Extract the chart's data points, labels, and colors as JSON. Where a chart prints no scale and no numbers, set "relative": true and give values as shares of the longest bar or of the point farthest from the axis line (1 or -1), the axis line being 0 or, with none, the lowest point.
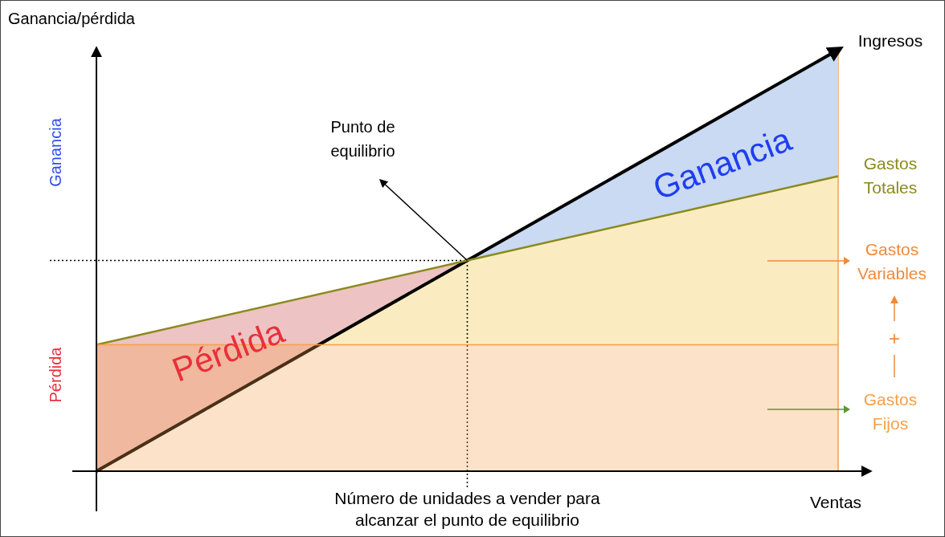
{
  "chart_data": {
    "type": "line",
    "ylabel": "Ganancia/pérdida",
    "xlabel": "Ventas",
    "relative": true,
    "categories": [
      null,
      null,
      null
    ],
    "series": [
      {
        "name": "Ingresos",
        "color": "#000000",
        "values": [
          0,
          0.5,
          1
        ]
      },
      {
        "name": "Gastos Totales",
        "color": "#8a8a1e",
        "values": [
          0.3,
          0.5,
          0.7
        ]
      },
      {
        "name": "Gastos Fijos",
        "type": "area",
        "color": "#f5a04a",
        "values": [
          0.3,
          0.3,
          0.3
        ]
      }
    ],
    "ref_lines": [
      {
        "axis": "y",
        "value": 0.5,
        "line_style": "dotted"
      }
    ],
    "annotations": [
      "Punto de equilibrio",
      "Ganancia",
      "Pérdida",
      "Ganancia",
      "Pérdida",
      "Número de unidades a vender para alcanzar el punto de equilibrio",
      "+",
      "Gastos Variables"
    ]
  }
}
